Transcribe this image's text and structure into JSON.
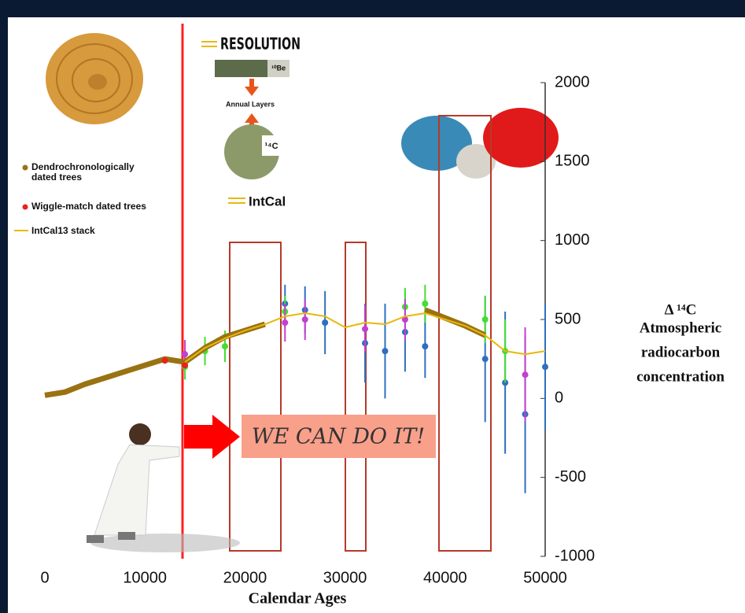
{
  "chart_data": {
    "type": "line",
    "xlabel": "Calendar Ages",
    "ylabel": [
      "Δ ¹⁴C",
      "Atmospheric",
      "radiocarbon",
      "concentration"
    ],
    "x": [
      0,
      2000,
      4000,
      6000,
      8000,
      10000,
      12000,
      14000,
      16000,
      18000,
      20000,
      22000,
      24000,
      26000,
      28000,
      30000,
      32000,
      34000,
      36000,
      38000,
      40000,
      42000,
      44000,
      46000,
      48000,
      50000
    ],
    "xlim": [
      0,
      50000
    ],
    "xticks": [
      0,
      10000,
      20000,
      30000,
      40000,
      50000
    ],
    "ylim": [
      -1000,
      2000
    ],
    "yticks": [
      -1000,
      -500,
      0,
      500,
      1000,
      1500,
      2000
    ],
    "series": [
      {
        "name": "Dendrochronologically dated trees",
        "color": "#9a7212",
        "style": "band",
        "values": [
          20,
          40,
          90,
          130,
          170,
          210,
          250,
          230,
          320,
          390,
          430,
          470,
          null,
          null,
          null,
          null,
          null,
          null,
          null,
          560,
          510,
          460,
          400,
          null,
          null,
          null
        ]
      },
      {
        "name": "Wiggle-match dated trees",
        "color": "#e8231c",
        "style": "points",
        "values": [
          null,
          null,
          null,
          null,
          null,
          null,
          240,
          210,
          null,
          null,
          null,
          null,
          null,
          null,
          null,
          null,
          null,
          null,
          null,
          null,
          null,
          null,
          null,
          null,
          null,
          null
        ]
      },
      {
        "name": "IntCal13 stack",
        "color": "#e8b80c",
        "style": "line",
        "values": [
          null,
          null,
          null,
          null,
          null,
          null,
          null,
          230,
          320,
          380,
          430,
          470,
          520,
          540,
          520,
          450,
          480,
          470,
          520,
          540,
          500,
          460,
          400,
          300,
          280,
          300
        ]
      },
      {
        "color": "#2e6fbf",
        "style": "errorbars",
        "values": [
          null,
          null,
          null,
          null,
          null,
          null,
          null,
          null,
          null,
          null,
          null,
          null,
          600,
          560,
          480,
          null,
          350,
          300,
          420,
          330,
          null,
          null,
          250,
          100,
          -100,
          200
        ],
        "errors": [
          null,
          null,
          null,
          null,
          null,
          null,
          null,
          null,
          null,
          null,
          null,
          null,
          120,
          150,
          200,
          null,
          250,
          300,
          250,
          200,
          null,
          null,
          400,
          450,
          500,
          400
        ]
      },
      {
        "color": "#44dd33",
        "style": "errorbars",
        "values": [
          null,
          null,
          null,
          null,
          null,
          null,
          null,
          200,
          300,
          330,
          null,
          null,
          550,
          null,
          null,
          null,
          null,
          null,
          580,
          600,
          null,
          null,
          500,
          300,
          null,
          null
        ],
        "errors": [
          null,
          null,
          null,
          null,
          null,
          null,
          null,
          80,
          90,
          100,
          null,
          null,
          100,
          null,
          null,
          null,
          null,
          null,
          120,
          120,
          null,
          null,
          150,
          200,
          null,
          null
        ]
      },
      {
        "color": "#c23fd0",
        "style": "errorbars",
        "values": [
          null,
          null,
          null,
          null,
          null,
          null,
          null,
          280,
          null,
          null,
          null,
          null,
          480,
          500,
          null,
          null,
          440,
          null,
          500,
          null,
          null,
          null,
          null,
          null,
          150,
          null
        ],
        "errors": [
          null,
          null,
          null,
          null,
          null,
          null,
          null,
          90,
          null,
          null,
          null,
          null,
          120,
          130,
          null,
          null,
          150,
          null,
          130,
          null,
          null,
          null,
          null,
          null,
          300,
          null
        ]
      }
    ],
    "annotations": {
      "resolution": "RESOLUTION",
      "be10": "¹⁰Be",
      "annual_layers": "Annual Layers",
      "c14": "¹⁴C",
      "intcal": "IntCal",
      "slogan": "WE CAN DO IT!"
    }
  }
}
